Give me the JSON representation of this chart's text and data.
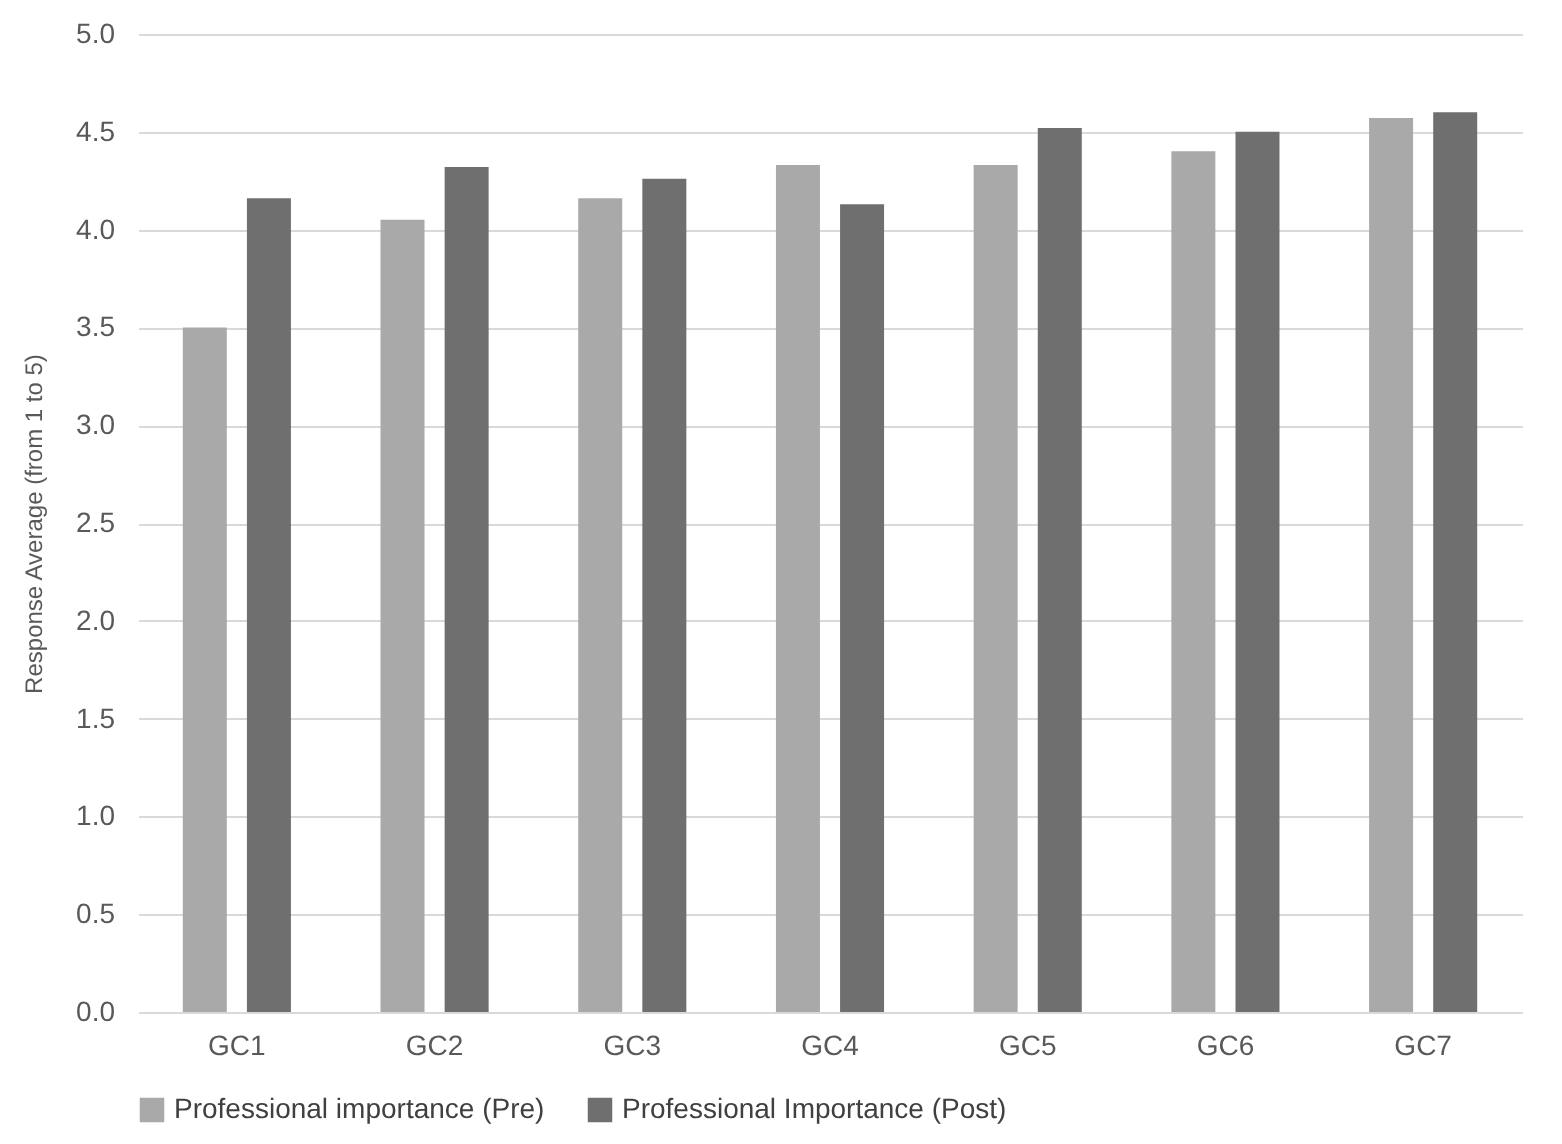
{
  "chart_data": {
    "type": "bar",
    "ylabel": "Response Average (from 1 to 5)",
    "categories": [
      "GC1",
      "GC2",
      "GC3",
      "GC4",
      "GC5",
      "GC6",
      "GC7"
    ],
    "series": [
      {
        "name": "Professional importance (Pre)",
        "color": "#a9a9a9",
        "values": [
          3.5,
          4.05,
          4.16,
          4.33,
          4.33,
          4.4,
          4.57
        ]
      },
      {
        "name": "Professional Importance (Post)",
        "color": "#6f6f6f",
        "values": [
          4.16,
          4.32,
          4.26,
          4.13,
          4.52,
          4.5,
          4.6
        ]
      }
    ],
    "ylim": [
      0,
      5
    ],
    "yticks": [
      {
        "value": 0,
        "label": "0.0"
      },
      0.5,
      {
        "value": 1,
        "label": "1.0"
      },
      1.5,
      {
        "value": 2,
        "label": "2.0"
      },
      2.5,
      {
        "value": 3,
        "label": "3.0"
      },
      3.5,
      {
        "value": 4,
        "label": "4.0"
      },
      4.5,
      {
        "value": 5,
        "label": "5.0"
      }
    ],
    "grid": "y",
    "legend": "bottom"
  }
}
